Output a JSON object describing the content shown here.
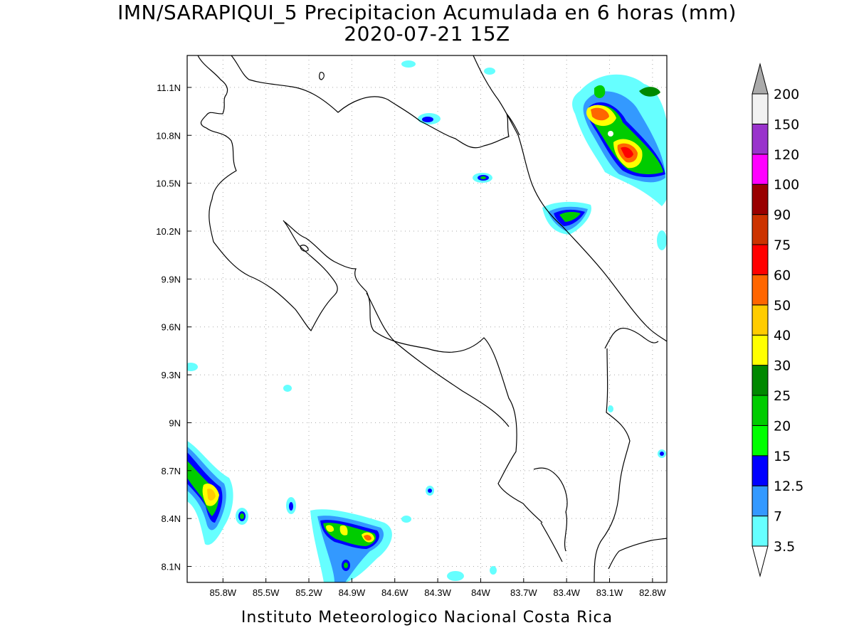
{
  "title": {
    "line1": "IMN/SARAPIQUI_5 Precipitacion Acumulada en 6 horas (mm)",
    "line2": "2020-07-21 15Z"
  },
  "footer": "Instituto Meteorologico Nacional Costa Rica",
  "map": {
    "lon_range": [
      -86.05,
      -82.7
    ],
    "lat_range": [
      8.0,
      11.3
    ],
    "lon_ticks": [
      {
        "value": -85.8,
        "label": "85.8W"
      },
      {
        "value": -85.5,
        "label": "85.5W"
      },
      {
        "value": -85.2,
        "label": "85.2W"
      },
      {
        "value": -84.9,
        "label": "84.9W"
      },
      {
        "value": -84.6,
        "label": "84.6W"
      },
      {
        "value": -84.3,
        "label": "84.3W"
      },
      {
        "value": -84.0,
        "label": "84W"
      },
      {
        "value": -83.7,
        "label": "83.7W"
      },
      {
        "value": -83.4,
        "label": "83.4W"
      },
      {
        "value": -83.1,
        "label": "83.1W"
      },
      {
        "value": -82.8,
        "label": "82.8W"
      }
    ],
    "lat_ticks": [
      {
        "value": 11.1,
        "label": "11.1N"
      },
      {
        "value": 10.8,
        "label": "10.8N"
      },
      {
        "value": 10.5,
        "label": "10.5N"
      },
      {
        "value": 10.2,
        "label": "10.2N"
      },
      {
        "value": 9.9,
        "label": "9.9N"
      },
      {
        "value": 9.6,
        "label": "9.6N"
      },
      {
        "value": 9.3,
        "label": "9.3N"
      },
      {
        "value": 9.0,
        "label": "9N"
      },
      {
        "value": 8.7,
        "label": "8.7N"
      },
      {
        "value": 8.4,
        "label": "8.4N"
      },
      {
        "value": 8.1,
        "label": "8.1N"
      }
    ],
    "grid": true
  },
  "colorbar": {
    "labels": [
      "3.5",
      "7",
      "12.5",
      "15",
      "20",
      "25",
      "30",
      "40",
      "50",
      "60",
      "75",
      "90",
      "100",
      "120",
      "150",
      "200"
    ],
    "colors": [
      "#66ffff",
      "#3399ff",
      "#0000ff",
      "#00ff00",
      "#00cc00",
      "#008800",
      "#ffff00",
      "#ffcc00",
      "#ff6600",
      "#ff0000",
      "#cc3300",
      "#990000",
      "#ff00ff",
      "#9933cc",
      "#f2f2f2",
      "#aaaaaa"
    ]
  }
}
